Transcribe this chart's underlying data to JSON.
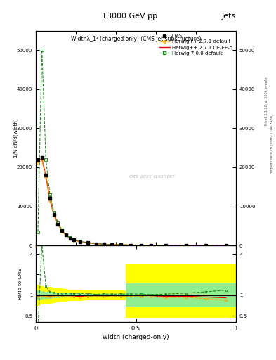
{
  "title": "13000 GeV pp",
  "top_right_label": "Jets",
  "plot_title": "Widthλ_1¹ (charged only) (CMS jet substructure)",
  "watermark": "CMS_2021_I1920187",
  "right_label_top": "Rivet 3.1.10, ≥ 500k events",
  "right_label_bottom": "mcplots.cern.ch [arXiv:1306.3436]",
  "xlabel": "width (charged-only)",
  "ylabel": "1/N dN/d(width)",
  "legend_entries": [
    "CMS",
    "Herwig++ 2.7.1 default",
    "Herwig++ 2.7.1 UE-EE-5",
    "Herwig 7.0.0 default"
  ],
  "x_bins": [
    0.0,
    0.02,
    0.04,
    0.06,
    0.08,
    0.1,
    0.12,
    0.14,
    0.16,
    0.18,
    0.2,
    0.24,
    0.28,
    0.32,
    0.36,
    0.4,
    0.45,
    0.5,
    0.55,
    0.6,
    0.7,
    0.8,
    0.9,
    1.0
  ],
  "cms_y": [
    22000,
    22500,
    18000,
    12000,
    8000,
    5500,
    3800,
    2700,
    1900,
    1400,
    1000,
    700,
    450,
    300,
    200,
    150,
    100,
    70,
    50,
    35,
    20,
    12,
    8
  ],
  "herwig271_default_y": [
    21000,
    22000,
    17500,
    11500,
    7800,
    5400,
    3700,
    2650,
    1850,
    1350,
    950,
    680,
    440,
    290,
    195,
    145,
    98,
    68,
    48,
    33,
    19,
    11,
    7
  ],
  "herwig271_ueee5_y": [
    21500,
    22200,
    17800,
    11700,
    7900,
    5450,
    3750,
    2680,
    1880,
    1370,
    970,
    690,
    445,
    295,
    198,
    148,
    100,
    70,
    50,
    34,
    20,
    12,
    8
  ],
  "herwig700_default_y": [
    3500,
    50000,
    22000,
    13000,
    8500,
    5800,
    4000,
    2800,
    2000,
    1450,
    1050,
    730,
    460,
    310,
    205,
    155,
    103,
    72,
    51,
    36,
    21,
    13,
    9
  ],
  "ratio_x_bins": [
    0.0,
    0.02,
    0.04,
    0.06,
    0.08,
    0.1,
    0.12,
    0.14,
    0.16,
    0.18,
    0.2,
    0.24,
    0.28,
    0.32,
    0.36,
    0.4,
    0.45,
    0.5,
    0.55,
    0.6,
    0.7,
    0.8,
    0.9,
    1.0
  ],
  "ratio_herwig271_default": [
    0.955,
    0.978,
    0.972,
    0.958,
    0.975,
    0.982,
    0.974,
    0.981,
    0.974,
    0.964,
    0.95,
    0.971,
    0.978,
    0.967,
    0.975,
    0.967,
    0.98,
    0.971,
    0.96,
    0.943,
    0.95,
    0.917,
    0.875
  ],
  "ratio_herwig271_ueee5": [
    0.977,
    0.987,
    0.989,
    0.975,
    0.988,
    0.991,
    0.987,
    0.993,
    0.99,
    0.979,
    0.97,
    0.986,
    0.989,
    0.983,
    0.99,
    0.987,
    0.99,
    1.0,
    0.99,
    0.971,
    0.975,
    0.958,
    0.938
  ],
  "ratio_herwig700_default": [
    0.16,
    2.22,
    1.22,
    1.083,
    1.063,
    1.054,
    1.053,
    1.037,
    1.053,
    1.036,
    1.05,
    1.043,
    1.022,
    1.033,
    1.025,
    1.033,
    1.03,
    1.029,
    1.02,
    1.029,
    1.05,
    1.083,
    1.125
  ],
  "yellow_band_lo": [
    0.75,
    0.78,
    0.8,
    0.8,
    0.82,
    0.83,
    0.84,
    0.85,
    0.86,
    0.87,
    0.87,
    0.88,
    0.88,
    0.88,
    0.88,
    0.88,
    0.45,
    0.45,
    0.45,
    0.45,
    0.45,
    0.45,
    0.45
  ],
  "yellow_band_hi": [
    1.25,
    1.22,
    1.2,
    1.2,
    1.18,
    1.17,
    1.16,
    1.15,
    1.14,
    1.13,
    1.13,
    1.12,
    1.12,
    1.12,
    1.12,
    1.12,
    1.75,
    1.75,
    1.75,
    1.75,
    1.75,
    1.75,
    1.75
  ],
  "green_band_lo": [
    0.88,
    0.9,
    0.92,
    0.92,
    0.93,
    0.935,
    0.94,
    0.945,
    0.95,
    0.955,
    0.955,
    0.96,
    0.96,
    0.96,
    0.96,
    0.96,
    0.72,
    0.72,
    0.72,
    0.72,
    0.72,
    0.72,
    0.72
  ],
  "green_band_hi": [
    1.12,
    1.1,
    1.08,
    1.08,
    1.07,
    1.065,
    1.06,
    1.055,
    1.05,
    1.045,
    1.045,
    1.04,
    1.04,
    1.04,
    1.04,
    1.04,
    1.28,
    1.28,
    1.28,
    1.28,
    1.28,
    1.28,
    1.28
  ],
  "ylim_main": [
    0,
    55000
  ],
  "ylim_ratio": [
    0.35,
    2.2
  ],
  "xlim": [
    0.0,
    1.0
  ],
  "yticks_main": [
    0,
    10000,
    20000,
    30000,
    40000,
    50000
  ],
  "ytick_labels_main": [
    "0",
    "10000",
    "20000",
    "30000",
    "40000",
    "50000"
  ],
  "color_cms": "#000000",
  "color_herwig271_default": "#FFA500",
  "color_herwig271_ueee5": "#FF0000",
  "color_herwig700_default": "#228B22",
  "color_yellow": "#FFFF00",
  "color_green": "#90EE90",
  "background_color": "#ffffff"
}
